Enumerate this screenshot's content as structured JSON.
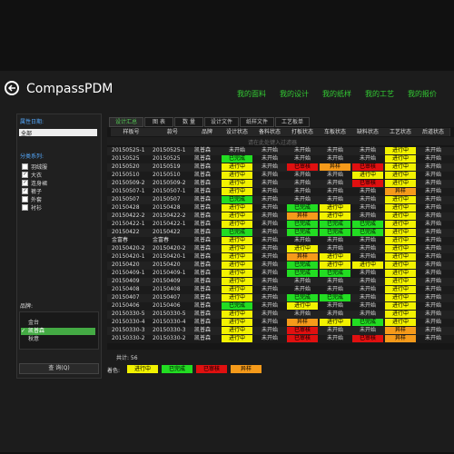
{
  "header": {
    "app_title": "CompassPDM",
    "nav": [
      "我的面料",
      "我的设计",
      "我的纸样",
      "我的工艺",
      "我的报价"
    ]
  },
  "sidebar": {
    "date_label": "属性日期:",
    "date_value": "全部",
    "category_label": "分类系列:",
    "categories": [
      {
        "name": "羽绒服",
        "checked": false
      },
      {
        "name": "大衣",
        "checked": true
      },
      {
        "name": "连身裙",
        "checked": true
      },
      {
        "name": "裤子",
        "checked": true
      },
      {
        "name": "外套",
        "checked": false
      },
      {
        "name": "衬衫",
        "checked": false
      }
    ],
    "brand_label": "品牌:",
    "brands": [
      {
        "name": "金台",
        "selected": false
      },
      {
        "name": "凯普森",
        "selected": true
      },
      {
        "name": "秋意",
        "selected": false
      }
    ],
    "query_button": "查 询(Q)"
  },
  "tabs": [
    "设计汇总",
    "图 表",
    "数 量",
    "设计文件",
    "纸样文件",
    "工艺板单"
  ],
  "table": {
    "columns": [
      "样板号",
      "款号",
      "品牌",
      "设计状态",
      "备料状态",
      "打板状态",
      "车板状态",
      "缺料状态",
      "工艺状态",
      "后道状态"
    ],
    "filter_hint": "请在此处键入过滤器",
    "rows": [
      [
        "20150525-1",
        "20150525-1",
        "凯普森",
        "未开始",
        "未开始",
        "未开始",
        "未开始",
        "未开始",
        "进行中",
        "未开始"
      ],
      [
        "20150525",
        "20150525",
        "凯普森",
        "已完成",
        "未开始",
        "未开始",
        "未开始",
        "未开始",
        "进行中",
        "未开始"
      ],
      [
        "20150520",
        "20150519",
        "凯普森",
        "进行中",
        "未开始",
        "已审核",
        "异样",
        "已审核",
        "进行中",
        "未开始"
      ],
      [
        "20150510",
        "20150510",
        "凯普森",
        "进行中",
        "未开始",
        "未开始",
        "未开始",
        "进行中",
        "进行中",
        "未开始"
      ],
      [
        "20150509-2",
        "20150509-2",
        "凯普森",
        "进行中",
        "未开始",
        "未开始",
        "未开始",
        "已审核",
        "进行中",
        "未开始"
      ],
      [
        "20150507-1",
        "20150507-1",
        "凯普森",
        "进行中",
        "未开始",
        "未开始",
        "未开始",
        "未开始",
        "异样",
        "未开始"
      ],
      [
        "20150507",
        "20150507",
        "凯普森",
        "已完成",
        "未开始",
        "未开始",
        "未开始",
        "未开始",
        "进行中",
        "未开始"
      ],
      [
        "20150428",
        "20150428",
        "凯普森",
        "进行中",
        "未开始",
        "已完成",
        "进行中",
        "未开始",
        "进行中",
        "未开始"
      ],
      [
        "20150422-2",
        "20150422-2",
        "凯普森",
        "进行中",
        "未开始",
        "异样",
        "进行中",
        "未开始",
        "进行中",
        "未开始"
      ],
      [
        "20150422-1",
        "20150422-1",
        "凯普森",
        "进行中",
        "未开始",
        "已完成",
        "已完成",
        "已完成",
        "进行中",
        "未开始"
      ],
      [
        "20150422",
        "20150422",
        "凯普森",
        "已完成",
        "未开始",
        "已完成",
        "已完成",
        "已完成",
        "进行中",
        "未开始"
      ],
      [
        "金富春",
        "金富春",
        "凯普森",
        "进行中",
        "未开始",
        "未开始",
        "未开始",
        "未开始",
        "进行中",
        "未开始"
      ],
      [
        "20150420-2",
        "20150420-2",
        "凯普森",
        "进行中",
        "未开始",
        "进行中",
        "未开始",
        "未开始",
        "进行中",
        "未开始"
      ],
      [
        "20150420-1",
        "20150420-1",
        "凯普森",
        "进行中",
        "未开始",
        "异样",
        "进行中",
        "未开始",
        "进行中",
        "未开始"
      ],
      [
        "20150420",
        "20150420",
        "凯普森",
        "进行中",
        "未开始",
        "已完成",
        "进行中",
        "进行中",
        "进行中",
        "未开始"
      ],
      [
        "20150409-1",
        "20150409-1",
        "凯普森",
        "进行中",
        "未开始",
        "已完成",
        "已完成",
        "未开始",
        "进行中",
        "未开始"
      ],
      [
        "20150409",
        "20150409",
        "凯普森",
        "进行中",
        "未开始",
        "未开始",
        "未开始",
        "未开始",
        "进行中",
        "未开始"
      ],
      [
        "20150408",
        "20150408",
        "凯普森",
        "进行中",
        "未开始",
        "未开始",
        "未开始",
        "未开始",
        "进行中",
        "未开始"
      ],
      [
        "20150407",
        "20150407",
        "凯普森",
        "进行中",
        "未开始",
        "已完成",
        "已完成",
        "未开始",
        "进行中",
        "未开始"
      ],
      [
        "20150406",
        "20150406",
        "凯普森",
        "已完成",
        "未开始",
        "进行中",
        "未开始",
        "未开始",
        "进行中",
        "未开始"
      ],
      [
        "20150330-5",
        "20150330-5",
        "凯普森",
        "进行中",
        "未开始",
        "未开始",
        "未开始",
        "未开始",
        "进行中",
        "未开始"
      ],
      [
        "20150330-4",
        "20150330-4",
        "凯普森",
        "进行中",
        "未开始",
        "异样",
        "进行中",
        "已完成",
        "进行中",
        "未开始"
      ],
      [
        "20150330-3",
        "20150330-3",
        "凯普森",
        "进行中",
        "未开始",
        "已审核",
        "未开始",
        "未开始",
        "异样",
        "未开始"
      ],
      [
        "20150330-2",
        "20150330-2",
        "凯普森",
        "进行中",
        "未开始",
        "已审核",
        "未开始",
        "已审核",
        "异样",
        "未开始"
      ]
    ]
  },
  "footer": {
    "total": "共计: 56",
    "legend_label": "着色:",
    "legend": [
      {
        "name": "进行中",
        "color": "#f2f200"
      },
      {
        "name": "已完成",
        "color": "#22dd22"
      },
      {
        "name": "已审核",
        "color": "#e01010"
      },
      {
        "name": "异样",
        "color": "#f59a1a"
      }
    ]
  }
}
